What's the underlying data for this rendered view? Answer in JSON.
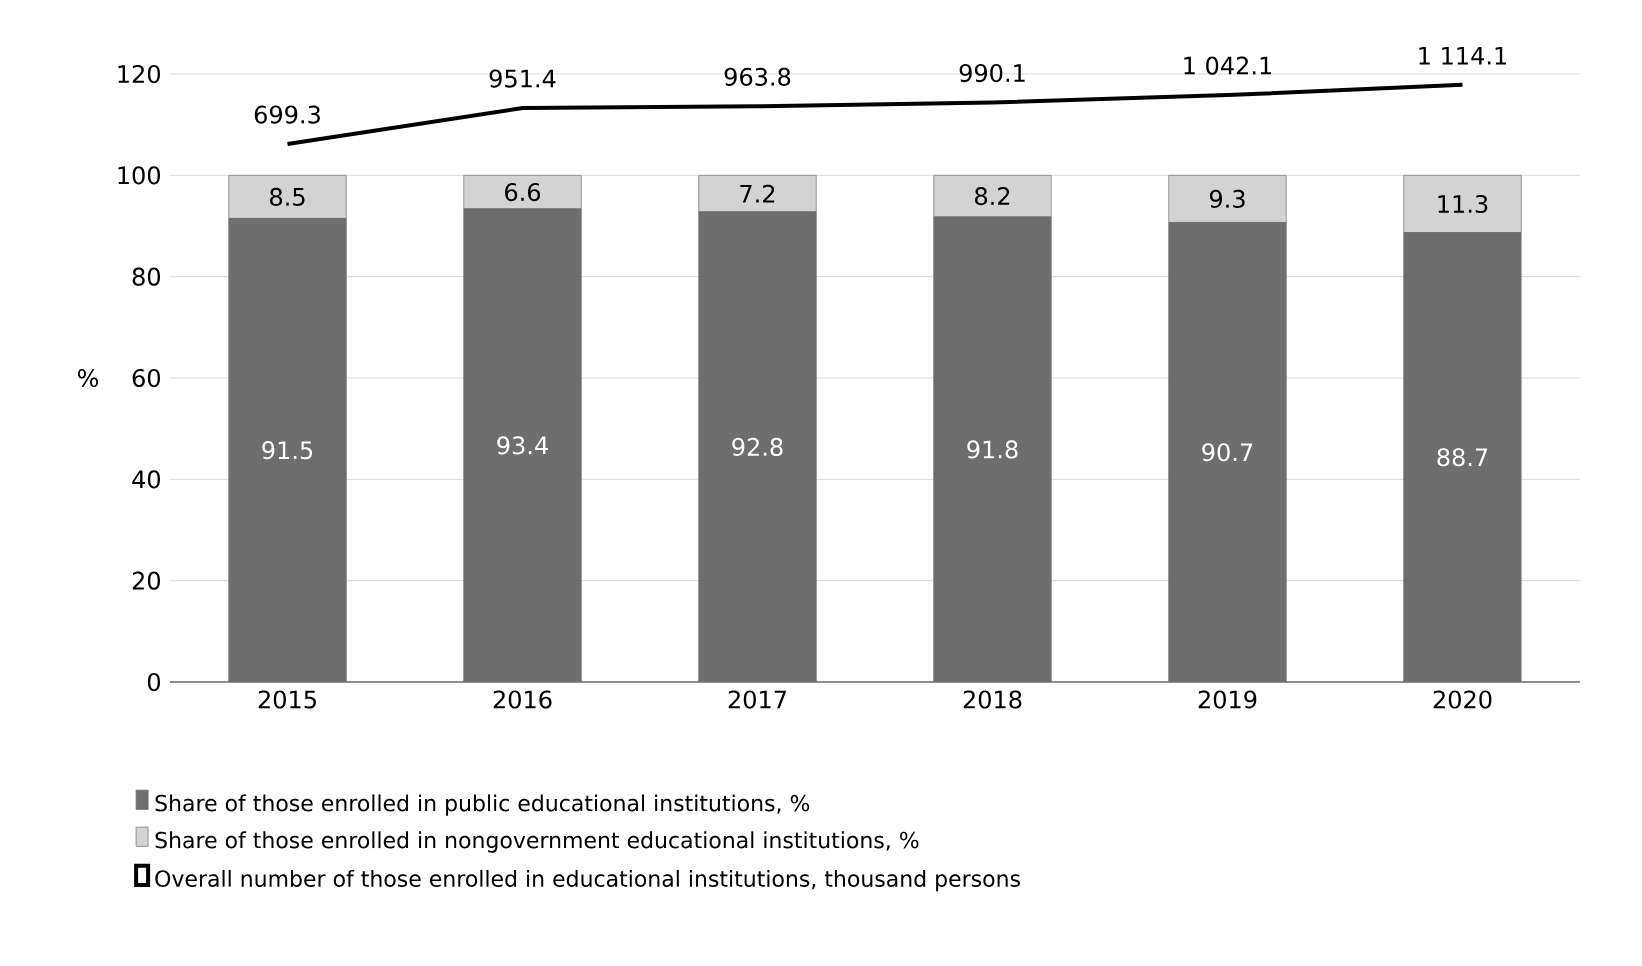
{
  "chart_data": {
    "type": "bar",
    "stacked": true,
    "ylabel": "%",
    "categories": [
      "2015",
      "2016",
      "2017",
      "2018",
      "2019",
      "2020"
    ],
    "ylim": [
      0,
      120
    ],
    "yticks": [
      0,
      20,
      40,
      60,
      80,
      100,
      120
    ],
    "y2lim": [
      -3070,
      1190
    ],
    "grid": "y",
    "legend": "bottom",
    "series": [
      {
        "name": "Share of those enrolled in public educational institutions, %",
        "color": "#6e6e6e",
        "values": [
          91.5,
          93.4,
          92.8,
          91.8,
          90.7,
          88.7
        ],
        "value_labels": [
          "91.5",
          "93.4",
          "92.8",
          "91.8",
          "90.7",
          "88.7"
        ]
      },
      {
        "name": "Share of those enrolled in nongovernment educational institutions, %",
        "color": "#d3d3d3",
        "values": [
          8.5,
          6.6,
          7.2,
          8.2,
          9.3,
          11.3
        ],
        "value_labels": [
          "8.5",
          "6.6",
          "7.2",
          "8.2",
          "9.3",
          "11.3"
        ]
      },
      {
        "name": "Overall number of those enrolled in educational institutions, thousand persons",
        "type": "line",
        "axis": "y2",
        "color": "#000000",
        "values": [
          699.3,
          951.4,
          963.8,
          990.1,
          1042.1,
          1114.1
        ],
        "value_labels": [
          "699.3",
          "951.4",
          "963.8",
          "990.1",
          "1 042.1",
          "1 114.1"
        ]
      }
    ]
  }
}
